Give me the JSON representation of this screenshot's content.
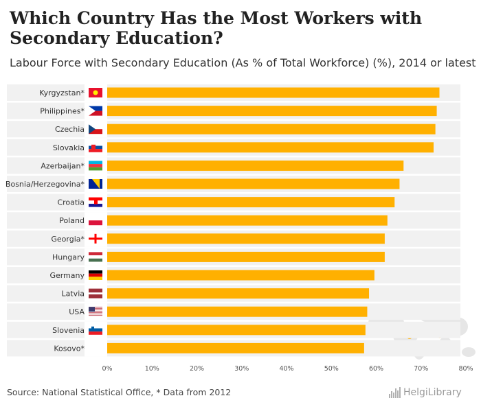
{
  "title": "Which Country Has the Most Workers with Secondary Education?",
  "subtitle": "Labour Force with Secondary Education (As % of Total Workforce) (%), 2014 or latest",
  "source": "Source: National Statistical Office, * Data from 2012",
  "brand": {
    "name": "HelgiLibrary",
    "icon": "bar-chart-icon"
  },
  "colors": {
    "bar": "#ffb000",
    "row_band": "#f1f1f1",
    "tick_text": "#555555",
    "label_text": "#333333"
  },
  "chart_data": {
    "type": "bar",
    "orientation": "horizontal",
    "title": "Which Country Has the Most Workers with Secondary Education?",
    "subtitle": "Labour Force with Secondary Education (As % of Total Workforce) (%), 2014 or latest",
    "xlabel": "",
    "ylabel": "",
    "xlim": [
      0,
      80
    ],
    "ticks": [
      0,
      10,
      20,
      30,
      40,
      50,
      60,
      70,
      80
    ],
    "tick_labels": [
      "0%",
      "10%",
      "20%",
      "30%",
      "40%",
      "50%",
      "60%",
      "70%",
      "80%"
    ],
    "grid": false,
    "categories": [
      {
        "label": "Kyrgyzstan*",
        "value": 74.1,
        "flag": "kyrgyzstan-flag-icon"
      },
      {
        "label": "Philippines*",
        "value": 73.5,
        "flag": "philippines-flag-icon"
      },
      {
        "label": "Czechia",
        "value": 73.2,
        "flag": "czechia-flag-icon"
      },
      {
        "label": "Slovakia",
        "value": 72.8,
        "flag": "slovakia-flag-icon"
      },
      {
        "label": "Azerbaijan*",
        "value": 66.1,
        "flag": "azerbaijan-flag-icon"
      },
      {
        "label": "Bosnia/Herzegovina*",
        "value": 65.2,
        "flag": "bosnia-herzegovina-flag-icon"
      },
      {
        "label": "Croatia",
        "value": 64.1,
        "flag": "croatia-flag-icon"
      },
      {
        "label": "Poland",
        "value": 62.5,
        "flag": "poland-flag-icon"
      },
      {
        "label": "Georgia*",
        "value": 61.9,
        "flag": "georgia-flag-icon"
      },
      {
        "label": "Hungary",
        "value": 61.9,
        "flag": "hungary-flag-icon"
      },
      {
        "label": "Germany",
        "value": 59.6,
        "flag": "germany-flag-icon"
      },
      {
        "label": "Latvia",
        "value": 58.4,
        "flag": "latvia-flag-icon"
      },
      {
        "label": "USA",
        "value": 58.0,
        "flag": "usa-flag-icon"
      },
      {
        "label": "Slovenia",
        "value": 57.6,
        "flag": "slovenia-flag-icon"
      },
      {
        "label": "Kosovo*",
        "value": 57.3,
        "flag": "kosovo-flag-icon"
      }
    ]
  }
}
